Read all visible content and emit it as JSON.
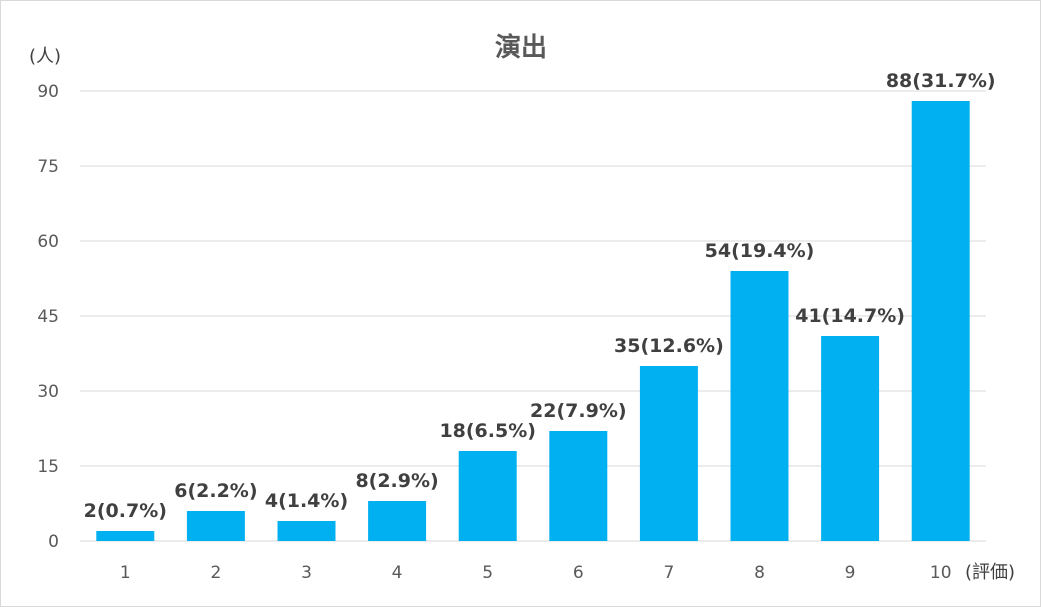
{
  "chart_data": {
    "type": "bar",
    "title": "演出",
    "ylabel": "(人)",
    "xlabel": "(評価)",
    "categories": [
      "1",
      "2",
      "3",
      "4",
      "5",
      "6",
      "7",
      "8",
      "9",
      "10"
    ],
    "values": [
      2,
      6,
      4,
      8,
      18,
      22,
      35,
      54,
      41,
      88
    ],
    "data_labels": [
      "2(0.7%)",
      "6(2.2%)",
      "4(1.4%)",
      "8(2.9%)",
      "18(6.5%)",
      "22(7.9%)",
      "35(12.6%)",
      "54(19.4%)",
      "41(14.7%)",
      "88(31.7%)"
    ],
    "ylim": [
      0,
      90
    ],
    "yticks": [
      0,
      15,
      30,
      45,
      60,
      75,
      90
    ],
    "grid": true,
    "legend": "none",
    "bar_color": "#00b0f0"
  }
}
